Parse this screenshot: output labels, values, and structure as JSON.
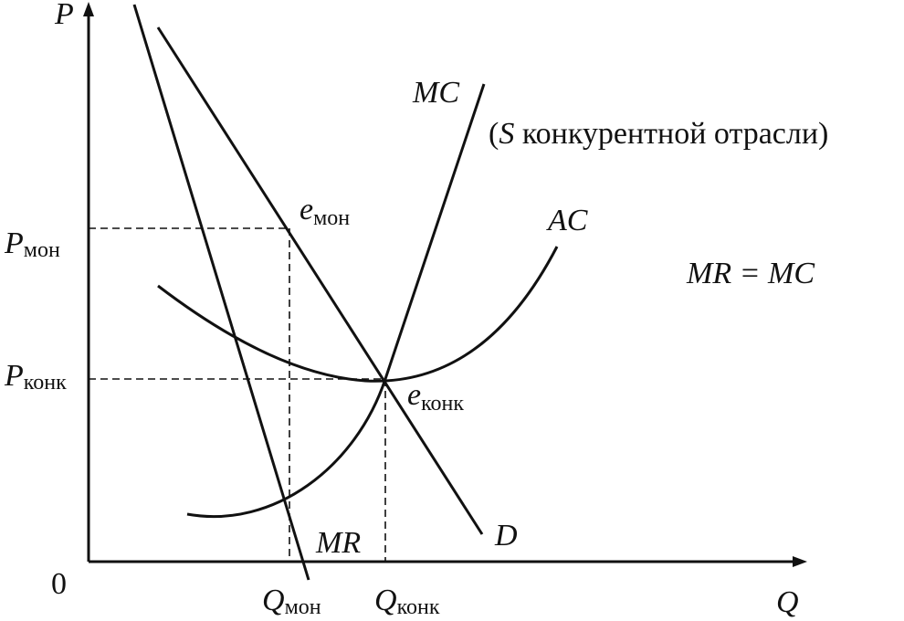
{
  "axes": {
    "y_label": "P",
    "x_label": "Q",
    "origin": "0"
  },
  "price_labels": [
    {
      "main": "P",
      "sub": "мон"
    },
    {
      "main": "P",
      "sub": "конк"
    }
  ],
  "quantity_labels": [
    {
      "main": "Q",
      "sub": "мон"
    },
    {
      "main": "Q",
      "sub": "конк"
    }
  ],
  "equilibria": [
    {
      "main": "e",
      "sub": "мон"
    },
    {
      "main": "e",
      "sub": "конк"
    }
  ],
  "curves": {
    "mc": "MC",
    "ac": "AC",
    "d": "D",
    "mr": "MR"
  },
  "note": {
    "open": "(",
    "symbol": "S",
    "text": " конкурентной отрасли)"
  },
  "condition": "MR = MC"
}
